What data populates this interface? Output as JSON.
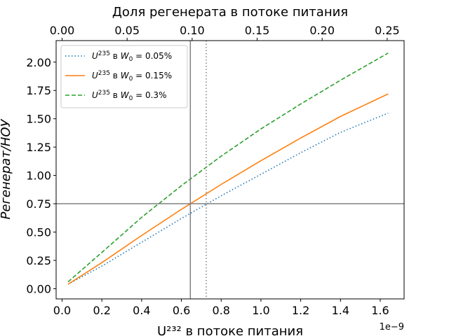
{
  "chart_data": {
    "type": "line",
    "xlabel": "U²³² в потоке питания",
    "ylabel": "Регенерат/НОУ",
    "top_xlabel": "Доля регенерата в потоке питания",
    "x_exponent_label": "1e−9",
    "xlim": [
      -0.03,
      1.72
    ],
    "ylim": [
      -0.09,
      2.19
    ],
    "top_xlim": [
      -0.0046,
      0.263
    ],
    "x_ticks": [
      0.0,
      0.2,
      0.4,
      0.6,
      0.8,
      1.0,
      1.2,
      1.4,
      1.6
    ],
    "x_tick_labels": [
      "0.0",
      "0.2",
      "0.4",
      "0.6",
      "0.8",
      "1.0",
      "1.2",
      "1.4",
      "1.6"
    ],
    "y_ticks": [
      0.0,
      0.25,
      0.5,
      0.75,
      1.0,
      1.25,
      1.5,
      1.75,
      2.0
    ],
    "y_tick_labels": [
      "0.00",
      "0.25",
      "0.50",
      "0.75",
      "1.00",
      "1.25",
      "1.50",
      "1.75",
      "2.00"
    ],
    "top_x_ticks": [
      0.0,
      0.05,
      0.1,
      0.15,
      0.2,
      0.25
    ],
    "top_x_tick_labels": [
      "0.00",
      "0.05",
      "0.10",
      "0.15",
      "0.20",
      "0.25"
    ],
    "legend_position": "top-left",
    "grid": false,
    "series": [
      {
        "name": "U²³⁵ в W₀ = 0.05%",
        "legend_parts": [
          "U",
          "235",
          " в ",
          "W",
          "0",
          " = 0.05%"
        ],
        "color": "#1f77b4",
        "style": "dotted",
        "x": [
          0.03,
          0.2,
          0.4,
          0.6,
          0.8,
          1.0,
          1.2,
          1.4,
          1.64
        ],
        "y": [
          0.04,
          0.2,
          0.41,
          0.62,
          0.82,
          1.01,
          1.2,
          1.38,
          1.55
        ]
      },
      {
        "name": "U²³⁵ в W₀ = 0.15%",
        "legend_parts": [
          "U",
          "235",
          " в ",
          "W",
          "0",
          " = 0.15%"
        ],
        "color": "#ff7f0e",
        "style": "solid",
        "x": [
          0.03,
          0.2,
          0.4,
          0.6,
          0.8,
          1.0,
          1.2,
          1.4,
          1.64
        ],
        "y": [
          0.04,
          0.23,
          0.47,
          0.7,
          0.92,
          1.13,
          1.33,
          1.52,
          1.72
        ]
      },
      {
        "name": "U²³⁵ в W₀ = 0.3%",
        "legend_parts": [
          "U",
          "235",
          " в ",
          "W",
          "0",
          " = 0.3%"
        ],
        "color": "#2ca02c",
        "style": "dashed",
        "x": [
          0.03,
          0.2,
          0.4,
          0.6,
          0.8,
          1.0,
          1.2,
          1.4,
          1.64
        ],
        "y": [
          0.06,
          0.32,
          0.63,
          0.91,
          1.17,
          1.41,
          1.63,
          1.84,
          2.08
        ]
      }
    ],
    "reference_lines": [
      {
        "orientation": "horizontal",
        "value": 0.75,
        "color": "#808080",
        "style": "solid"
      },
      {
        "orientation": "vertical",
        "value": 0.645,
        "color": "#808080",
        "style": "solid"
      },
      {
        "orientation": "vertical",
        "value": 0.725,
        "color": "#808080",
        "style": "dotted"
      }
    ]
  }
}
